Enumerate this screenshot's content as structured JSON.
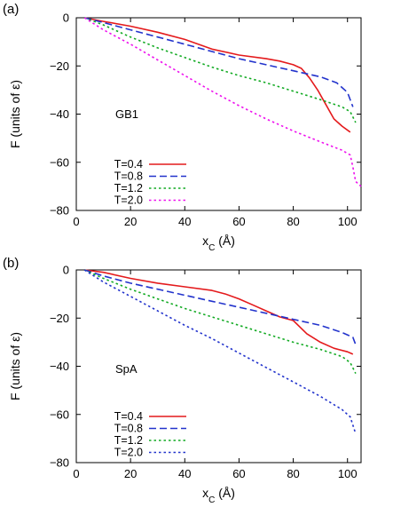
{
  "chart_data": [
    {
      "type": "line",
      "panel_label": "(a)",
      "annotation": "GB1",
      "xlabel": "x_C (Å)",
      "ylabel": "F (units of ε)",
      "xlim": [
        0,
        105
      ],
      "ylim": [
        -80,
        0
      ],
      "xticks": [
        "0",
        "20",
        "40",
        "60",
        "80",
        "100"
      ],
      "yticks": [
        "0",
        "−20",
        "−40",
        "−60",
        "−80"
      ],
      "legend_position": "bottom-left",
      "series": [
        {
          "name": "T=0.4",
          "color": "#e41a1c",
          "dash": "solid",
          "x": [
            3,
            10,
            20,
            30,
            40,
            50,
            60,
            70,
            75,
            80,
            83,
            86,
            89,
            92,
            95,
            98,
            101
          ],
          "y": [
            0,
            -1.5,
            -3.5,
            -6,
            -9,
            -13,
            -15.5,
            -17,
            -18,
            -19.5,
            -21,
            -25,
            -30,
            -36,
            -42,
            -45,
            -47.5
          ]
        },
        {
          "name": "T=0.8",
          "color": "#2233cc",
          "dash": "dashed",
          "x": [
            3,
            10,
            20,
            30,
            40,
            50,
            60,
            70,
            80,
            90,
            96,
            100,
            102
          ],
          "y": [
            0,
            -2,
            -5,
            -8,
            -11,
            -14,
            -17,
            -19.5,
            -22,
            -24.5,
            -27,
            -31,
            -37
          ]
        },
        {
          "name": "T=1.2",
          "color": "#11aa22",
          "dash": "dotted",
          "x": [
            3,
            10,
            20,
            30,
            40,
            50,
            60,
            70,
            80,
            90,
            98,
            101,
            103
          ],
          "y": [
            0,
            -3,
            -8,
            -12.5,
            -16.5,
            -20.5,
            -24,
            -27,
            -30.5,
            -34,
            -37,
            -39,
            -43.5
          ]
        },
        {
          "name": "T=2.0",
          "color": "#ee11ee",
          "dash": "dotted",
          "x": [
            3,
            10,
            20,
            30,
            40,
            50,
            60,
            70,
            80,
            90,
            98,
            101,
            102,
            103,
            105
          ],
          "y": [
            0,
            -5,
            -11,
            -17.5,
            -24,
            -30.5,
            -36.5,
            -42,
            -47,
            -51.5,
            -55,
            -57,
            -62,
            -68,
            -70
          ]
        }
      ]
    },
    {
      "type": "line",
      "panel_label": "(b)",
      "annotation": "SpA",
      "xlabel": "x_C (Å)",
      "ylabel": "F (units of ε)",
      "xlim": [
        0,
        105
      ],
      "ylim": [
        -80,
        0
      ],
      "xticks": [
        "0",
        "20",
        "40",
        "60",
        "80",
        "100"
      ],
      "yticks": [
        "0",
        "−20",
        "−40",
        "−60",
        "−80"
      ],
      "legend_position": "bottom-left",
      "series": [
        {
          "name": "T=0.4",
          "color": "#e41a1c",
          "dash": "solid",
          "x": [
            3,
            10,
            20,
            30,
            40,
            50,
            55,
            60,
            65,
            70,
            75,
            80,
            85,
            90,
            95,
            100,
            102
          ],
          "y": [
            0,
            -1,
            -3.5,
            -5.5,
            -7,
            -8.5,
            -10,
            -12,
            -14.5,
            -17,
            -19.5,
            -21,
            -26.5,
            -30,
            -32.5,
            -34,
            -35
          ]
        },
        {
          "name": "T=0.8",
          "color": "#2233cc",
          "dash": "dashed",
          "x": [
            3,
            10,
            20,
            30,
            40,
            50,
            60,
            70,
            80,
            90,
            98,
            102,
            103
          ],
          "y": [
            0,
            -2.5,
            -5.5,
            -8,
            -10.5,
            -13,
            -15.5,
            -18,
            -20.5,
            -23,
            -26,
            -28,
            -31
          ]
        },
        {
          "name": "T=1.2",
          "color": "#11aa22",
          "dash": "dotted",
          "x": [
            3,
            10,
            20,
            30,
            40,
            50,
            60,
            70,
            80,
            90,
            98,
            101,
            103
          ],
          "y": [
            0,
            -3.5,
            -8,
            -12,
            -16,
            -19.5,
            -23,
            -26.5,
            -30,
            -33,
            -36,
            -38.5,
            -43
          ]
        },
        {
          "name": "T=2.0",
          "color": "#2233cc",
          "dash": "dotted",
          "x": [
            3,
            10,
            20,
            30,
            40,
            50,
            60,
            70,
            80,
            90,
            98,
            101,
            103
          ],
          "y": [
            0,
            -5,
            -11,
            -17,
            -23,
            -28.5,
            -34.5,
            -40.5,
            -46.5,
            -52.5,
            -58,
            -61,
            -68
          ]
        }
      ]
    }
  ]
}
